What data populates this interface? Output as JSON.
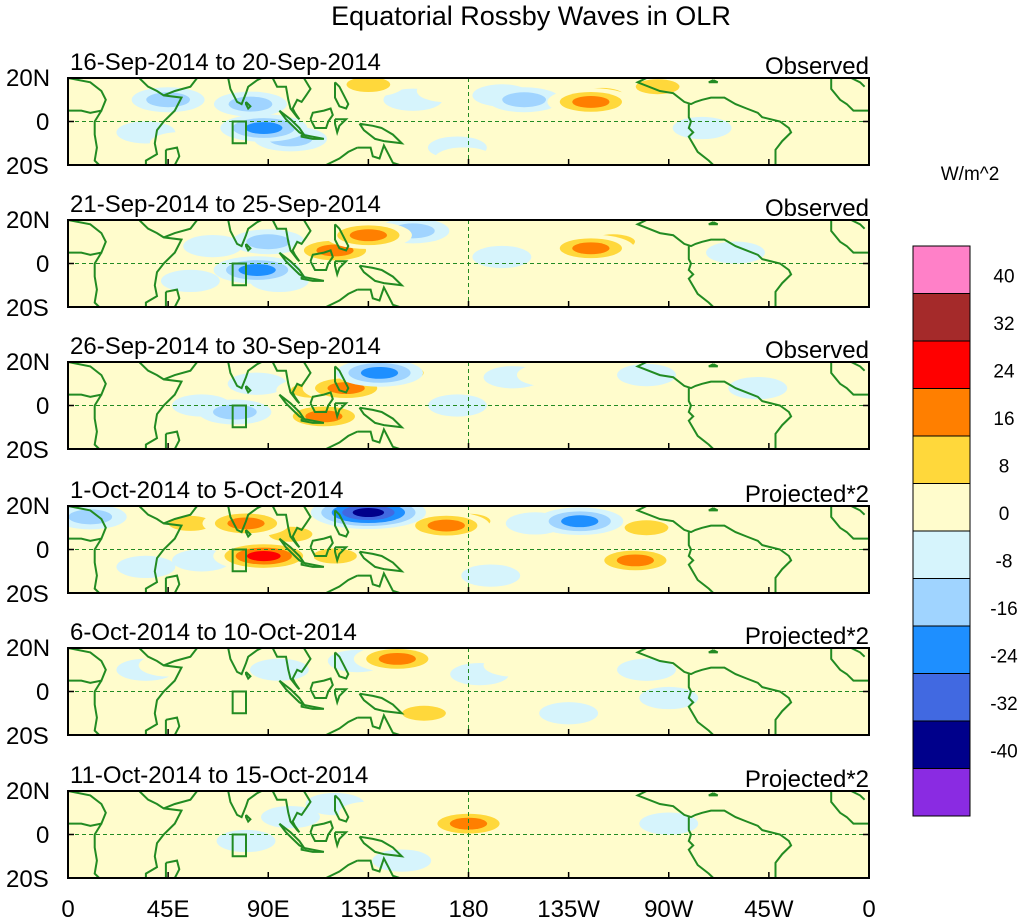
{
  "title": "Equatorial Rossby Waves in OLR",
  "colorbar": {
    "units": "W/m^2",
    "labels": [
      "40",
      "32",
      "24",
      "16",
      "8",
      "0",
      "-8",
      "-16",
      "-24",
      "-32",
      "-40"
    ],
    "colors": [
      "#ff80c8",
      "#a52a2a",
      "#ff0000",
      "#ff7f00",
      "#ffd83b",
      "#fffccc",
      "#d6f4fc",
      "#a0d4ff",
      "#1e8fff",
      "#4169e1",
      "#00008b",
      "#8a2be2"
    ]
  },
  "axes": {
    "lat_labels": [
      "20N",
      "0",
      "20S"
    ],
    "lon_labels": [
      "0",
      "45E",
      "90E",
      "135E",
      "180",
      "135W",
      "90W",
      "45W",
      "0"
    ]
  },
  "colors": {
    "coast": "#228b22",
    "grid": "#228b22",
    "frame": "#000000",
    "box": "#228b22"
  },
  "panels": [
    {
      "dates": "16-Sep-2014 to 20-Sep-2014",
      "label": "Observed"
    },
    {
      "dates": "21-Sep-2014 to 25-Sep-2014",
      "label": "Observed"
    },
    {
      "dates": "26-Sep-2014 to 30-Sep-2014",
      "label": "Observed"
    },
    {
      "dates": "1-Oct-2014 to 5-Oct-2014",
      "label": "Projected*2"
    },
    {
      "dates": "6-Oct-2014 to 10-Oct-2014",
      "label": "Projected*2"
    },
    {
      "dates": "11-Oct-2014 to 15-Oct-2014",
      "label": "Projected*2"
    }
  ],
  "anomalies": [
    [
      [
        45,
        10,
        -16
      ],
      [
        60,
        -3,
        8
      ],
      [
        88,
        -3,
        -24
      ],
      [
        82,
        8,
        -16
      ],
      [
        100,
        -8,
        -16
      ],
      [
        118,
        14,
        8
      ],
      [
        135,
        17,
        16
      ],
      [
        145,
        -3,
        8
      ],
      [
        155,
        10,
        -8
      ],
      [
        170,
        14,
        8
      ],
      [
        195,
        12,
        -8
      ],
      [
        205,
        10,
        -16
      ],
      [
        215,
        8,
        8
      ],
      [
        235,
        9,
        24
      ],
      [
        240,
        12,
        16
      ],
      [
        240,
        3,
        8
      ],
      [
        265,
        16,
        16
      ],
      [
        280,
        6,
        8
      ],
      [
        285,
        -3,
        -8
      ],
      [
        310,
        7,
        8
      ],
      [
        35,
        -5,
        -8
      ],
      [
        50,
        -10,
        8
      ],
      [
        175,
        -12,
        -8
      ],
      [
        178,
        -17,
        8
      ]
    ],
    [
      [
        45,
        10,
        8
      ],
      [
        65,
        8,
        -8
      ],
      [
        85,
        -3,
        -24
      ],
      [
        90,
        10,
        -16
      ],
      [
        95,
        -8,
        -8
      ],
      [
        110,
        12,
        8
      ],
      [
        120,
        6,
        24
      ],
      [
        135,
        13,
        24
      ],
      [
        155,
        15,
        -16
      ],
      [
        175,
        15,
        8
      ],
      [
        195,
        3,
        -8
      ],
      [
        235,
        7,
        24
      ],
      [
        245,
        10,
        16
      ],
      [
        260,
        14,
        8
      ],
      [
        280,
        0,
        8
      ],
      [
        300,
        5,
        -8
      ],
      [
        305,
        -10,
        8
      ],
      [
        30,
        -10,
        8
      ],
      [
        55,
        -8,
        -8
      ],
      [
        160,
        -10,
        8
      ]
    ],
    [
      [
        50,
        10,
        8
      ],
      [
        75,
        -3,
        -16
      ],
      [
        85,
        10,
        -8
      ],
      [
        110,
        7,
        16
      ],
      [
        115,
        -5,
        24
      ],
      [
        125,
        8,
        24
      ],
      [
        140,
        15,
        -24
      ],
      [
        150,
        15,
        16
      ],
      [
        160,
        -10,
        8
      ],
      [
        175,
        0,
        -8
      ],
      [
        200,
        13,
        -8
      ],
      [
        215,
        14,
        8
      ],
      [
        230,
        12,
        8
      ],
      [
        260,
        14,
        -8
      ],
      [
        275,
        3,
        8
      ],
      [
        285,
        -5,
        8
      ],
      [
        310,
        8,
        -8
      ],
      [
        40,
        -10,
        8
      ],
      [
        25,
        5,
        8
      ],
      [
        60,
        0,
        -8
      ]
    ],
    [
      [
        10,
        15,
        -16
      ],
      [
        55,
        12,
        16
      ],
      [
        60,
        -5,
        -8
      ],
      [
        80,
        12,
        24
      ],
      [
        88,
        -3,
        32
      ],
      [
        100,
        7,
        16
      ],
      [
        120,
        -3,
        16
      ],
      [
        135,
        17,
        -40
      ],
      [
        145,
        10,
        8
      ],
      [
        170,
        11,
        24
      ],
      [
        180,
        13,
        16
      ],
      [
        210,
        12,
        -8
      ],
      [
        230,
        13,
        -24
      ],
      [
        245,
        7,
        8
      ],
      [
        255,
        -5,
        24
      ],
      [
        260,
        10,
        16
      ],
      [
        275,
        -8,
        8
      ],
      [
        300,
        10,
        8
      ],
      [
        35,
        -8,
        -8
      ],
      [
        165,
        -5,
        8
      ],
      [
        190,
        -12,
        -8
      ]
    ],
    [
      [
        35,
        10,
        -8
      ],
      [
        55,
        -5,
        8
      ],
      [
        75,
        -2,
        8
      ],
      [
        95,
        10,
        -8
      ],
      [
        100,
        -5,
        8
      ],
      [
        130,
        14,
        -8
      ],
      [
        148,
        15,
        24
      ],
      [
        165,
        13,
        8
      ],
      [
        160,
        -10,
        16
      ],
      [
        185,
        8,
        -8
      ],
      [
        200,
        12,
        8
      ],
      [
        240,
        8,
        8
      ],
      [
        260,
        10,
        -8
      ],
      [
        270,
        -3,
        -8
      ],
      [
        300,
        -10,
        8
      ],
      [
        45,
        12,
        8
      ],
      [
        225,
        -10,
        -8
      ]
    ],
    [
      [
        35,
        15,
        8
      ],
      [
        50,
        -3,
        8
      ],
      [
        80,
        -3,
        -8
      ],
      [
        100,
        8,
        -8
      ],
      [
        120,
        14,
        -8
      ],
      [
        135,
        10,
        8
      ],
      [
        160,
        12,
        8
      ],
      [
        180,
        5,
        24
      ],
      [
        200,
        3,
        8
      ],
      [
        230,
        10,
        8
      ],
      [
        270,
        5,
        -8
      ],
      [
        300,
        0,
        8
      ],
      [
        70,
        12,
        8
      ],
      [
        150,
        -12,
        -8
      ]
    ]
  ]
}
